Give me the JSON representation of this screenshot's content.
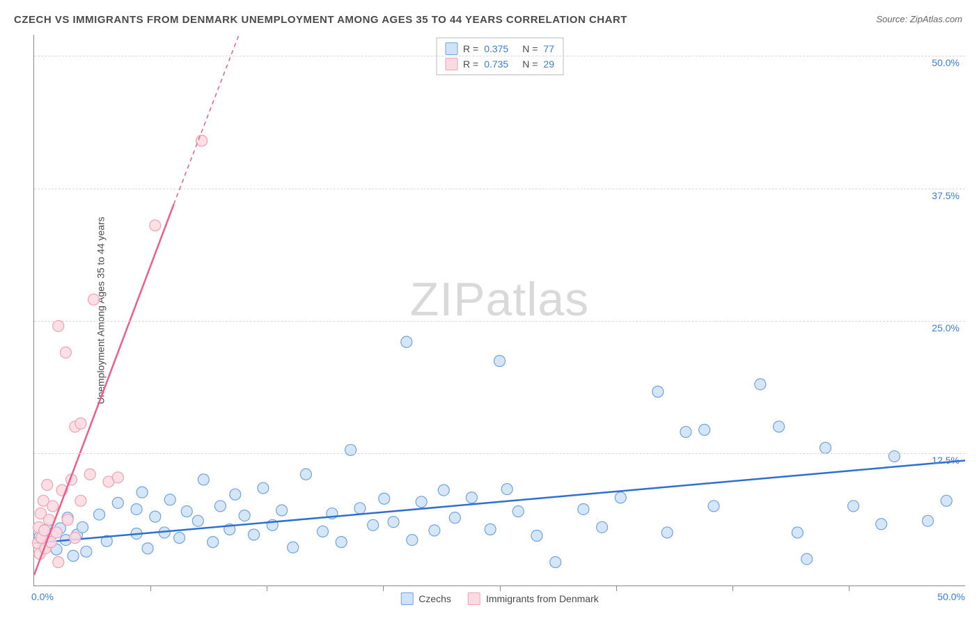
{
  "title": "CZECH VS IMMIGRANTS FROM DENMARK UNEMPLOYMENT AMONG AGES 35 TO 44 YEARS CORRELATION CHART",
  "source": "Source: ZipAtlas.com",
  "ylabel": "Unemployment Among Ages 35 to 44 years",
  "watermark_bold": "ZIP",
  "watermark_thin": "atlas",
  "chart": {
    "type": "scatter",
    "background_color": "#ffffff",
    "grid_color": "#d8d8d8",
    "axis_color": "#888888",
    "label_color": "#3b7dd8",
    "text_color": "#4a4a4a",
    "xlim": [
      0,
      50
    ],
    "ylim": [
      0,
      52
    ],
    "x_tick_interval": 6.25,
    "y_gridlines": [
      12.5,
      25,
      37.5,
      50
    ],
    "y_tick_labels": [
      "12.5%",
      "25.0%",
      "37.5%",
      "50.0%"
    ],
    "x_label_0": "0.0%",
    "x_label_max": "50.0%",
    "marker_radius": 8,
    "marker_stroke_width": 1.2,
    "trend_line_width": 2.5,
    "series": [
      {
        "name": "Czechs",
        "R": "0.375",
        "N": "77",
        "fill": "#cfe2f8",
        "stroke": "#6fa3e0",
        "line_color": "#2f6fd0",
        "trend": {
          "x1": 0,
          "y1": 4.0,
          "x2": 50,
          "y2": 11.8
        },
        "trend_dashed_after_x": 50,
        "points": [
          [
            0.3,
            4.6
          ],
          [
            0.5,
            3.6
          ],
          [
            0.7,
            5.3
          ],
          [
            0.8,
            4.0
          ],
          [
            1.0,
            4.9
          ],
          [
            1.2,
            3.4
          ],
          [
            1.4,
            5.4
          ],
          [
            1.7,
            4.3
          ],
          [
            1.8,
            6.4
          ],
          [
            2.1,
            2.8
          ],
          [
            2.3,
            4.8
          ],
          [
            2.6,
            5.5
          ],
          [
            2.8,
            3.2
          ],
          [
            3.5,
            6.7
          ],
          [
            3.9,
            4.2
          ],
          [
            4.5,
            7.8
          ],
          [
            5.5,
            4.9
          ],
          [
            5.5,
            7.2
          ],
          [
            5.8,
            8.8
          ],
          [
            6.1,
            3.5
          ],
          [
            6.5,
            6.5
          ],
          [
            7.0,
            5.0
          ],
          [
            7.3,
            8.1
          ],
          [
            7.8,
            4.5
          ],
          [
            8.2,
            7.0
          ],
          [
            8.8,
            6.1
          ],
          [
            9.1,
            10.0
          ],
          [
            9.6,
            4.1
          ],
          [
            10.0,
            7.5
          ],
          [
            10.5,
            5.3
          ],
          [
            10.8,
            8.6
          ],
          [
            11.3,
            6.6
          ],
          [
            11.8,
            4.8
          ],
          [
            12.3,
            9.2
          ],
          [
            12.8,
            5.7
          ],
          [
            13.3,
            7.1
          ],
          [
            13.9,
            3.6
          ],
          [
            14.6,
            10.5
          ],
          [
            15.5,
            5.1
          ],
          [
            16.0,
            6.8
          ],
          [
            16.5,
            4.1
          ],
          [
            17.0,
            12.8
          ],
          [
            17.5,
            7.3
          ],
          [
            18.2,
            5.7
          ],
          [
            18.8,
            8.2
          ],
          [
            19.3,
            6.0
          ],
          [
            20.0,
            23.0
          ],
          [
            20.3,
            4.3
          ],
          [
            20.8,
            7.9
          ],
          [
            21.5,
            5.2
          ],
          [
            22.0,
            9.0
          ],
          [
            22.6,
            6.4
          ],
          [
            23.5,
            8.3
          ],
          [
            24.5,
            5.3
          ],
          [
            25.0,
            21.2
          ],
          [
            25.4,
            9.1
          ],
          [
            26.0,
            7.0
          ],
          [
            27.0,
            4.7
          ],
          [
            28.0,
            2.2
          ],
          [
            29.5,
            7.2
          ],
          [
            30.5,
            5.5
          ],
          [
            31.5,
            8.3
          ],
          [
            33.5,
            18.3
          ],
          [
            34.0,
            5.0
          ],
          [
            35.0,
            14.5
          ],
          [
            36.0,
            14.7
          ],
          [
            36.5,
            7.5
          ],
          [
            39.0,
            19.0
          ],
          [
            40.0,
            15.0
          ],
          [
            41.0,
            5.0
          ],
          [
            41.5,
            2.5
          ],
          [
            42.5,
            13.0
          ],
          [
            44.0,
            7.5
          ],
          [
            45.5,
            5.8
          ],
          [
            46.2,
            12.2
          ],
          [
            48.0,
            6.1
          ],
          [
            49.0,
            8.0
          ]
        ]
      },
      {
        "name": "Immigrants from Denmark",
        "R": "0.735",
        "N": "29",
        "fill": "#fbdbe2",
        "stroke": "#f29fb3",
        "line_color": "#ec5f88",
        "trend": {
          "x1": 0,
          "y1": 1.0,
          "x2": 7.5,
          "y2": 36.0
        },
        "trend_dashed_after_x": 7.5,
        "trend_dashed": {
          "x1": 7.5,
          "y1": 36.0,
          "x2": 11.0,
          "y2": 52.0
        },
        "points": [
          [
            0.2,
            4.0
          ],
          [
            0.25,
            5.5
          ],
          [
            0.3,
            3.0
          ],
          [
            0.35,
            6.8
          ],
          [
            0.4,
            4.5
          ],
          [
            0.5,
            8.0
          ],
          [
            0.55,
            5.2
          ],
          [
            0.6,
            3.5
          ],
          [
            0.7,
            9.5
          ],
          [
            0.8,
            6.2
          ],
          [
            0.9,
            4.1
          ],
          [
            1.0,
            7.5
          ],
          [
            1.2,
            5.0
          ],
          [
            1.3,
            2.2
          ],
          [
            1.3,
            24.5
          ],
          [
            1.5,
            9.0
          ],
          [
            1.7,
            22.0
          ],
          [
            1.8,
            6.2
          ],
          [
            2.0,
            10.0
          ],
          [
            2.2,
            4.5
          ],
          [
            2.2,
            15.0
          ],
          [
            2.5,
            15.3
          ],
          [
            2.5,
            8.0
          ],
          [
            3.0,
            10.5
          ],
          [
            3.2,
            27.0
          ],
          [
            4.0,
            9.8
          ],
          [
            4.5,
            10.2
          ],
          [
            6.5,
            34.0
          ],
          [
            9.0,
            42.0
          ]
        ]
      }
    ]
  },
  "legend_bottom": [
    {
      "label": "Czechs",
      "fill": "#cfe2f8",
      "stroke": "#6fa3e0"
    },
    {
      "label": "Immigrants from Denmark",
      "fill": "#fbdbe2",
      "stroke": "#f29fb3"
    }
  ]
}
